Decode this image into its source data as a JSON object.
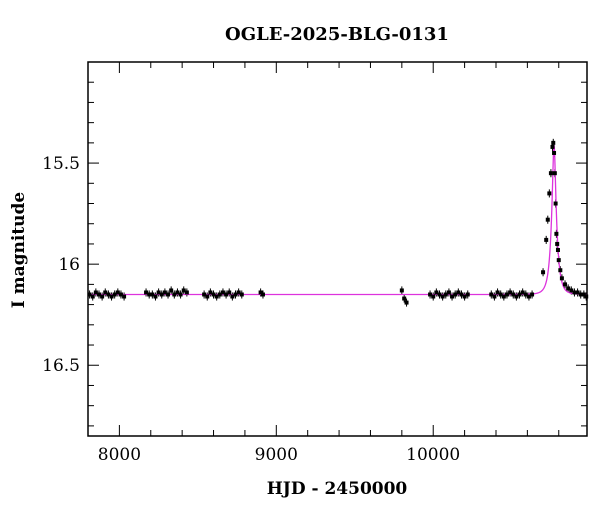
{
  "chart_data": {
    "type": "scatter",
    "title": "OGLE-2025-BLG-0131",
    "xlabel": "HJD - 2450000",
    "ylabel": "I magnitude",
    "xlim": [
      7800,
      10980
    ],
    "ylim": [
      16.85,
      15.0
    ],
    "y_inverted": true,
    "x_ticks": [
      8000,
      9000,
      10000
    ],
    "x_tick_labels": [
      "8000",
      "9000",
      "10000"
    ],
    "y_ticks": [
      15.5,
      16,
      16.5
    ],
    "y_tick_labels": [
      "15.5",
      "16",
      "16.5"
    ],
    "grid": false,
    "legend": "none",
    "colors": {
      "data": "#000000",
      "model": "#dd33dd",
      "frame": "#000000"
    },
    "series": [
      {
        "kind": "points_with_errorbars",
        "x": [
          7810,
          7830,
          7850,
          7870,
          7890,
          7910,
          7930,
          7950,
          7970,
          7990,
          8010,
          8030,
          8170,
          8190,
          8210,
          8230,
          8250,
          8270,
          8290,
          8310,
          8330,
          8350,
          8370,
          8390,
          8410,
          8430,
          8540,
          8560,
          8580,
          8600,
          8620,
          8640,
          8660,
          8680,
          8700,
          8720,
          8740,
          8760,
          8780,
          8900,
          8915,
          9800,
          9815,
          9830,
          9980,
          10000,
          10020,
          10040,
          10060,
          10080,
          10100,
          10120,
          10140,
          10160,
          10180,
          10200,
          10220,
          10370,
          10390,
          10410,
          10430,
          10450,
          10470,
          10490,
          10510,
          10530,
          10550,
          10570,
          10590,
          10610,
          10630,
          10700,
          10720,
          10730,
          10740,
          10750,
          10760,
          10765,
          10770,
          10775,
          10780,
          10785,
          10790,
          10795,
          10800,
          10810,
          10820,
          10840,
          10860,
          10880,
          10900,
          10920,
          10940,
          10960,
          10975
        ],
        "y": [
          16.15,
          16.16,
          16.14,
          16.15,
          16.16,
          16.14,
          16.15,
          16.16,
          16.15,
          16.14,
          16.15,
          16.16,
          16.14,
          16.15,
          16.15,
          16.16,
          16.14,
          16.15,
          16.14,
          16.15,
          16.13,
          16.15,
          16.14,
          16.15,
          16.13,
          16.14,
          16.15,
          16.16,
          16.14,
          16.15,
          16.16,
          16.15,
          16.14,
          16.15,
          16.14,
          16.16,
          16.15,
          16.14,
          16.15,
          16.14,
          16.15,
          16.13,
          16.17,
          16.19,
          16.15,
          16.16,
          16.14,
          16.15,
          16.16,
          16.15,
          16.14,
          16.16,
          16.15,
          16.14,
          16.15,
          16.16,
          16.15,
          16.15,
          16.16,
          16.14,
          16.15,
          16.16,
          16.15,
          16.14,
          16.15,
          16.16,
          16.15,
          16.14,
          16.15,
          16.16,
          16.15,
          16.04,
          15.88,
          15.78,
          15.65,
          15.55,
          15.42,
          15.4,
          15.45,
          15.55,
          15.7,
          15.85,
          15.9,
          15.93,
          15.98,
          16.03,
          16.07,
          16.1,
          16.12,
          16.13,
          16.14,
          16.14,
          16.15,
          16.15,
          16.16
        ],
        "yerr": 0.02
      },
      {
        "kind": "model_curve",
        "baseline": 16.15,
        "peak_time": 10770,
        "peak_mag": 15.41,
        "timescale": 32
      }
    ]
  }
}
